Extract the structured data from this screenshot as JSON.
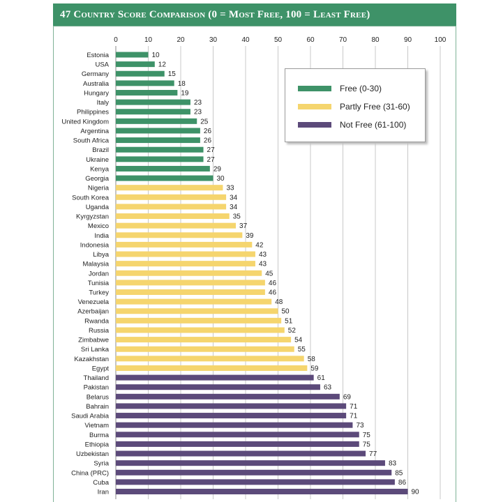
{
  "title": "47 Country Score Comparison (0 = Most Free, 100 = Least Free)",
  "legend": {
    "free": {
      "label": "Free (0-30)",
      "color": "#3e9268"
    },
    "partly": {
      "label": "Partly Free (31-60)",
      "color": "#f5d56e"
    },
    "notfree": {
      "label": "Not Free (61-100)",
      "color": "#5c4a7a"
    }
  },
  "chart_data": {
    "type": "bar",
    "orientation": "horizontal",
    "title": "47 Country Score Comparison (0 = Most Free, 100 = Least Free)",
    "xlabel": "",
    "ylabel": "",
    "xlim": [
      0,
      100
    ],
    "ticks": [
      0,
      10,
      20,
      30,
      40,
      50,
      60,
      70,
      80,
      90,
      100
    ],
    "grid": true,
    "legend_position": "top-right",
    "categories": [
      "Estonia",
      "USA",
      "Germany",
      "Australia",
      "Hungary",
      "Italy",
      "Philippines",
      "United Kingdom",
      "Argentina",
      "South Africa",
      "Brazil",
      "Ukraine",
      "Kenya",
      "Georgia",
      "Nigeria",
      "South Korea",
      "Uganda",
      "Kyrgyzstan",
      "Mexico",
      "India",
      "Indonesia",
      "Libya",
      "Malaysia",
      "Jordan",
      "Tunisia",
      "Turkey",
      "Venezuela",
      "Azerbaijan",
      "Rwanda",
      "Russia",
      "Zimbabwe",
      "Sri Lanka",
      "Kazakhstan",
      "Egypt",
      "Thailand",
      "Pakistan",
      "Belarus",
      "Bahrain",
      "Saudi Arabia",
      "Vietnam",
      "Burma",
      "Ethiopia",
      "Uzbekistan",
      "Syria",
      "China (PRC)",
      "Cuba",
      "Iran"
    ],
    "values": [
      10,
      12,
      15,
      18,
      19,
      23,
      23,
      25,
      26,
      26,
      27,
      27,
      29,
      30,
      33,
      34,
      34,
      35,
      37,
      39,
      42,
      43,
      43,
      45,
      46,
      46,
      48,
      50,
      51,
      52,
      54,
      55,
      58,
      59,
      61,
      63,
      69,
      71,
      71,
      73,
      75,
      75,
      77,
      83,
      85,
      86,
      90
    ]
  }
}
